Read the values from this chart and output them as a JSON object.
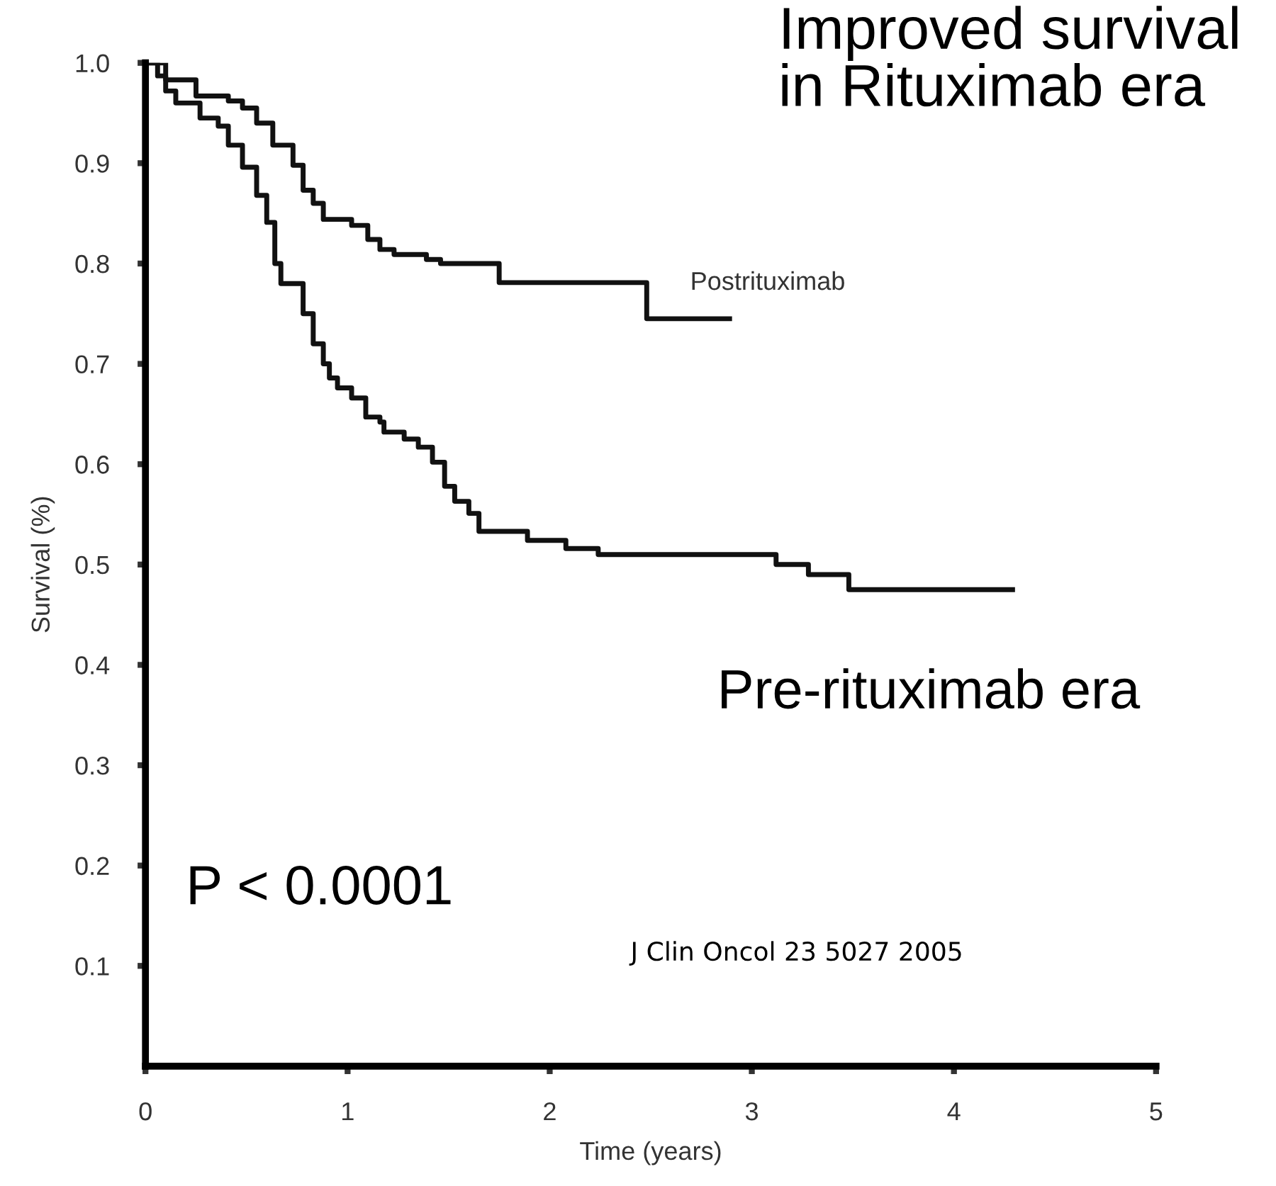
{
  "chart_data": {
    "type": "step",
    "title": "Improved survival in Rituximab era",
    "xlabel": "Time (years)",
    "ylabel": "Survival (%)",
    "annotations": [
      "P < 0.0001",
      "J Clin Oncol 23 5027 2005"
    ],
    "series": [
      {
        "name": "Postrituximab",
        "color": "#111111",
        "x": [
          0,
          0.1,
          0.25,
          0.41,
          0.48,
          0.55,
          0.63,
          0.73,
          0.78,
          0.83,
          0.88,
          1.02,
          1.1,
          1.16,
          1.23,
          1.39,
          1.46,
          1.75,
          2.48,
          2.89
        ],
        "values": [
          1.0,
          0.983,
          0.967,
          0.962,
          0.955,
          0.94,
          0.918,
          0.898,
          0.873,
          0.86,
          0.844,
          0.838,
          0.824,
          0.814,
          0.809,
          0.804,
          0.8,
          0.781,
          0.745,
          0.745
        ]
      },
      {
        "name": "Pre-rituximab era",
        "color": "#111111",
        "x": [
          0,
          0.06,
          0.1,
          0.15,
          0.27,
          0.36,
          0.41,
          0.48,
          0.55,
          0.6,
          0.64,
          0.67,
          0.78,
          0.83,
          0.88,
          0.91,
          0.95,
          1.02,
          1.09,
          1.16,
          1.18,
          1.28,
          1.35,
          1.42,
          1.48,
          1.53,
          1.6,
          1.65,
          1.89,
          2.08,
          2.24,
          3.12,
          3.28,
          3.48,
          4.29
        ],
        "values": [
          1.0,
          0.987,
          0.972,
          0.96,
          0.945,
          0.937,
          0.918,
          0.896,
          0.868,
          0.841,
          0.8,
          0.78,
          0.75,
          0.72,
          0.7,
          0.686,
          0.676,
          0.666,
          0.647,
          0.642,
          0.632,
          0.625,
          0.617,
          0.602,
          0.578,
          0.563,
          0.551,
          0.533,
          0.524,
          0.516,
          0.51,
          0.5,
          0.49,
          0.475,
          0.475
        ]
      }
    ],
    "xlim": [
      0,
      5
    ],
    "xticks": [
      0,
      1,
      2,
      3,
      4,
      5
    ],
    "ylim": [
      0,
      1.0
    ],
    "yticks": [
      0.1,
      0.2,
      0.3,
      0.4,
      0.5,
      0.6,
      0.7,
      0.8,
      0.9,
      {
        "value": 1.0,
        "label": "1.0"
      }
    ],
    "grid": false,
    "legend": false,
    "marker": "none",
    "line_style": "solid"
  }
}
